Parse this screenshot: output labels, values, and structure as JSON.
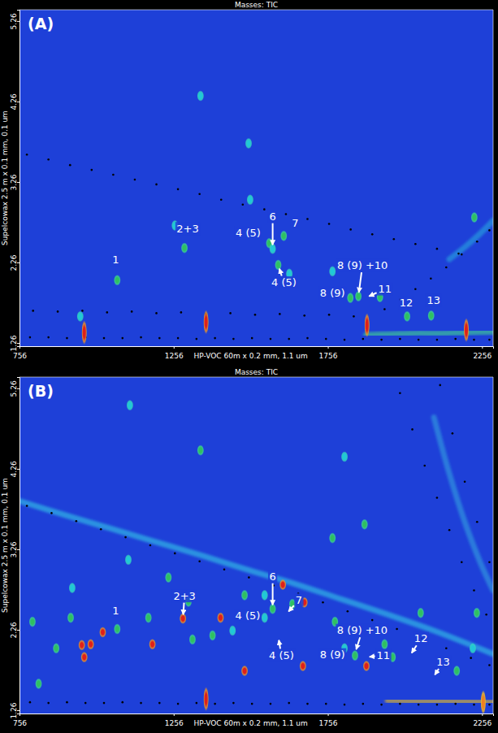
{
  "chart_data": [
    {
      "type": "scatter",
      "panel": "(A)",
      "title": "Masses: TIC",
      "x_label": "HP-VOC 60m x 0.2 mm, 1.1 um",
      "y_label": "Supelcowax 2.5 m x 0.1 mm, 0.1 um",
      "xlim": [
        756,
        2292
      ],
      "ylim": [
        1.22,
        5.4
      ],
      "xticks": [
        756,
        1256,
        1756,
        2256
      ],
      "yticks": [
        1.26,
        2.26,
        3.26,
        4.26,
        5.26
      ],
      "grid": false,
      "series": [
        {
          "type": "scatter",
          "marker": "blob",
          "x": [
            953,
            1073,
            1260,
            1291,
            1343,
            1499,
            1504,
            1566,
            1577,
            1595,
            1613,
            1631,
            1771,
            1829,
            1855,
            1925,
            2013,
            2091,
            2231
          ],
          "values": [
            1.59,
            2.04,
            2.72,
            2.44,
            4.33,
            3.74,
            3.04,
            2.5,
            2.43,
            2.23,
            2.59,
            2.12,
            2.15,
            1.82,
            1.84,
            1.83,
            1.59,
            1.6,
            2.82
          ],
          "colors": [
            "#20c8d8",
            "#30c060",
            "#20c8d8",
            "#30c060",
            "#20c8d8",
            "#20c8d8",
            "#20c8d8",
            "#30c060",
            "#20c8d8",
            "#30c060",
            "#30c060",
            "#20c8d8",
            "#20c8d8",
            "#30c060",
            "#30c060",
            "#30c060",
            "#30c060",
            "#30c060",
            "#30c060"
          ]
        },
        {
          "type": "scatter",
          "marker": "streak",
          "x": [
            966,
            1361,
            1883,
            2205
          ],
          "values": [
            1.39,
            1.52,
            1.48,
            1.42
          ],
          "colors": [
            "#e0201a",
            "#e0201a",
            "#e0201a",
            "#e0201a"
          ]
        },
        {
          "type": "scatter",
          "marker": "dot",
          "color": "#000000",
          "x": [
            780,
            850,
            920,
            990,
            1060,
            1130,
            1200,
            1270,
            1340,
            1410,
            1480,
            1550,
            1620,
            1690,
            1760,
            1830,
            1900,
            1970,
            2040,
            2110,
            2180,
            790,
            850,
            910,
            970,
            1030,
            1090,
            1150,
            1210,
            1270,
            1330,
            1390,
            1450,
            1510,
            1570,
            1630,
            1690,
            1750,
            1810,
            1870,
            1930,
            1990,
            2050,
            2110,
            2170,
            2230,
            2280,
            800,
            880,
            960,
            1040,
            1120,
            1200,
            1280,
            1360,
            1440,
            1520,
            1600,
            1680,
            1760,
            1840,
            1940,
            1990,
            2040,
            2090,
            2140,
            2190,
            2240,
            2280
          ],
          "values": [
            3.6,
            3.54,
            3.47,
            3.41,
            3.35,
            3.29,
            3.23,
            3.17,
            3.11,
            3.04,
            2.98,
            2.92,
            2.86,
            2.8,
            2.74,
            2.67,
            2.61,
            2.55,
            2.49,
            2.43,
            2.37,
            1.33,
            1.33,
            1.32,
            1.33,
            1.32,
            1.32,
            1.33,
            1.32,
            1.32,
            1.31,
            1.32,
            1.31,
            1.32,
            1.31,
            1.31,
            1.32,
            1.31,
            1.3,
            1.31,
            1.3,
            1.31,
            1.3,
            1.3,
            1.31,
            1.3,
            1.3,
            1.66,
            1.65,
            1.66,
            1.64,
            1.65,
            1.63,
            1.64,
            1.62,
            1.63,
            1.61,
            1.62,
            1.6,
            1.61,
            1.59,
            1.68,
            1.8,
            1.93,
            2.06,
            2.2,
            2.36,
            2.52,
            2.66
          ]
        },
        {
          "type": "line",
          "line_style": "glow",
          "color": "#40d890",
          "x": [
            1880,
            1960,
            2040,
            2120,
            2200,
            2292
          ],
          "values": [
            1.36,
            1.37,
            1.38,
            1.38,
            1.39,
            1.4
          ]
        },
        {
          "type": "line",
          "line_style": "glow",
          "color": "#2aa8e0",
          "x": [
            2150,
            2200,
            2250,
            2292
          ],
          "values": [
            2.3,
            2.45,
            2.62,
            2.78
          ]
        }
      ],
      "annotations": [
        {
          "text": "1",
          "x": 1073,
          "y": 2.04
        },
        {
          "text": "2+3",
          "x": 1291,
          "y": 2.44
        },
        {
          "text": "6",
          "x": 1577,
          "y": 2.43
        },
        {
          "text": "4 (5)",
          "x": 1566,
          "y": 2.5
        },
        {
          "text": "7",
          "x": 1613,
          "y": 2.59
        },
        {
          "text": "4 (5)",
          "x": 1595,
          "y": 2.23
        },
        {
          "text": "8 (9) +10",
          "x": 1855,
          "y": 1.84
        },
        {
          "text": "8 (9)",
          "x": 1829,
          "y": 1.82
        },
        {
          "text": "11",
          "x": 1878,
          "y": 1.82
        },
        {
          "text": "12",
          "x": 2013,
          "y": 1.59
        },
        {
          "text": "13",
          "x": 2091,
          "y": 1.6
        }
      ]
    },
    {
      "type": "scatter",
      "panel": "(B)",
      "title": "Masses: TIC",
      "x_label": "HP-VOC 60m x 0.2 mm, 1.1 um",
      "y_label": "Supelcowax 2.5 m x 0.1 mm, 0.1 um",
      "xlim": [
        756,
        2292
      ],
      "ylim": [
        1.22,
        5.4
      ],
      "xticks": [
        756,
        1256,
        1756,
        2256
      ],
      "yticks": [
        1.26,
        2.26,
        3.26,
        4.26,
        5.26
      ],
      "grid": false,
      "series": [
        {
          "type": "scatter",
          "marker": "blob",
          "x": [
            1114,
            1343,
            927,
            922,
            875,
            1073,
            1109,
            1174,
            1239,
            1304,
            1317,
            1382,
            1447,
            1486,
            1551,
            1577,
            1551,
            1641,
            1771,
            1779,
            1810,
            1844,
            1940,
            1966,
            2057,
            2174,
            2226,
            2239,
            1810,
            1875,
            798,
            818,
            958,
            966,
            987,
            1026,
            1187,
            1286,
            1408,
            1486,
            1610,
            1675,
            1680,
            1881
          ],
          "values": [
            5.05,
            4.49,
            2.78,
            2.41,
            2.03,
            2.27,
            3.13,
            2.41,
            2.91,
            2.61,
            2.14,
            2.19,
            2.25,
            2.69,
            2.41,
            2.52,
            2.69,
            2.58,
            3.4,
            2.36,
            2.03,
            1.94,
            2.08,
            1.92,
            2.47,
            1.75,
            2.03,
            2.47,
            4.41,
            3.57,
            2.36,
            1.59,
            2.07,
            1.92,
            2.08,
            2.23,
            2.08,
            2.4,
            2.41,
            1.75,
            2.82,
            1.81,
            2.6,
            1.81
          ],
          "colors": [
            "#20c8d8",
            "#30c060",
            "#20c8d8",
            "#30c060",
            "#30c060",
            "#30c060",
            "#20c8d8",
            "#30c060",
            "#30c060",
            "#30c060",
            "#30c060",
            "#30c060",
            "#20c8d8",
            "#30c060",
            "#20c8d8",
            "#30c060",
            "#20c8d8",
            "#30c060",
            "#30c060",
            "#30c060",
            "#20c8d8",
            "#30c060",
            "#30c060",
            "#30c060",
            "#30c060",
            "#30c060",
            "#20c8d8",
            "#30c060",
            "#20c8d8",
            "#30c060",
            "#30c060",
            "#30c060",
            "#e0201a",
            "#e0201a",
            "#e0201a",
            "#e0201a",
            "#e0201a",
            "#e0201a",
            "#e0201a",
            "#e0201a",
            "#e0201a",
            "#e0201a",
            "#e0201a",
            "#e0201a"
          ]
        },
        {
          "type": "scatter",
          "marker": "streak",
          "x": [
            1361,
            2260
          ],
          "values": [
            1.4,
            1.36
          ],
          "colors": [
            "#e0201a",
            "#f08020"
          ]
        },
        {
          "type": "scatter",
          "marker": "dot",
          "color": "#000000",
          "x": [
            790,
            850,
            910,
            970,
            1030,
            1090,
            1150,
            1210,
            1270,
            1330,
            1390,
            1450,
            1510,
            1570,
            1630,
            1690,
            1750,
            1810,
            1870,
            1930,
            1990,
            2050,
            2110,
            2170,
            2230,
            2280,
            780,
            860,
            940,
            1020,
            1100,
            1180,
            1260,
            1340,
            1420,
            1500,
            1580,
            1660,
            1740,
            1820,
            1900,
            1980,
            2060,
            2140,
            2220,
            2280,
            1990,
            2030,
            2070,
            2110,
            2150,
            2190,
            2230,
            2270,
            2120,
            2160,
            2200,
            2240,
            2280
          ],
          "values": [
            1.36,
            1.35,
            1.36,
            1.35,
            1.35,
            1.36,
            1.35,
            1.35,
            1.34,
            1.35,
            1.34,
            1.35,
            1.34,
            1.34,
            1.35,
            1.34,
            1.34,
            1.33,
            1.34,
            1.33,
            1.34,
            1.33,
            1.33,
            1.34,
            1.33,
            1.33,
            3.8,
            3.71,
            3.61,
            3.51,
            3.41,
            3.31,
            3.21,
            3.11,
            3.01,
            2.91,
            2.81,
            2.71,
            2.6,
            2.49,
            2.38,
            2.27,
            2.15,
            2.03,
            1.91,
            1.82,
            5.2,
            4.75,
            4.3,
            3.9,
            3.5,
            3.1,
            2.75,
            2.45,
            5.3,
            4.7,
            4.1,
            3.6,
            3.1
          ]
        },
        {
          "type": "line",
          "line_style": "glow",
          "color": "#30c8e8",
          "x": [
            756,
            900,
            1050,
            1200,
            1350,
            1500,
            1650,
            1800,
            1950,
            2100,
            2292
          ],
          "values": [
            3.86,
            3.69,
            3.52,
            3.35,
            3.18,
            3.0,
            2.83,
            2.64,
            2.45,
            2.25,
            1.96
          ]
        },
        {
          "type": "line",
          "line_style": "glow",
          "color": "#f0c020",
          "x": [
            1950,
            2050,
            2150,
            2292
          ],
          "values": [
            1.38,
            1.37,
            1.37,
            1.36
          ]
        },
        {
          "type": "line",
          "line_style": "glow",
          "color": "#30a0e0",
          "x": [
            2100,
            2150,
            2200,
            2250,
            2292
          ],
          "values": [
            4.9,
            4.2,
            3.6,
            3.1,
            2.75
          ]
        }
      ],
      "annotations": [
        {
          "text": "1",
          "x": 1073,
          "y": 2.27
        },
        {
          "text": "2+3",
          "x": 1286,
          "y": 2.4
        },
        {
          "text": "6",
          "x": 1577,
          "y": 2.52
        },
        {
          "text": "4 (5)",
          "x": 1570,
          "y": 2.42
        },
        {
          "text": "7",
          "x": 1620,
          "y": 2.45
        },
        {
          "text": "4 (5)",
          "x": 1595,
          "y": 2.18
        },
        {
          "text": "8 (9) +10",
          "x": 1844,
          "y": 1.97
        },
        {
          "text": "8 (9)",
          "x": 1829,
          "y": 1.93
        },
        {
          "text": "11",
          "x": 1878,
          "y": 1.92
        },
        {
          "text": "12",
          "x": 2021,
          "y": 1.93
        },
        {
          "text": "13",
          "x": 2096,
          "y": 1.66
        }
      ]
    }
  ]
}
